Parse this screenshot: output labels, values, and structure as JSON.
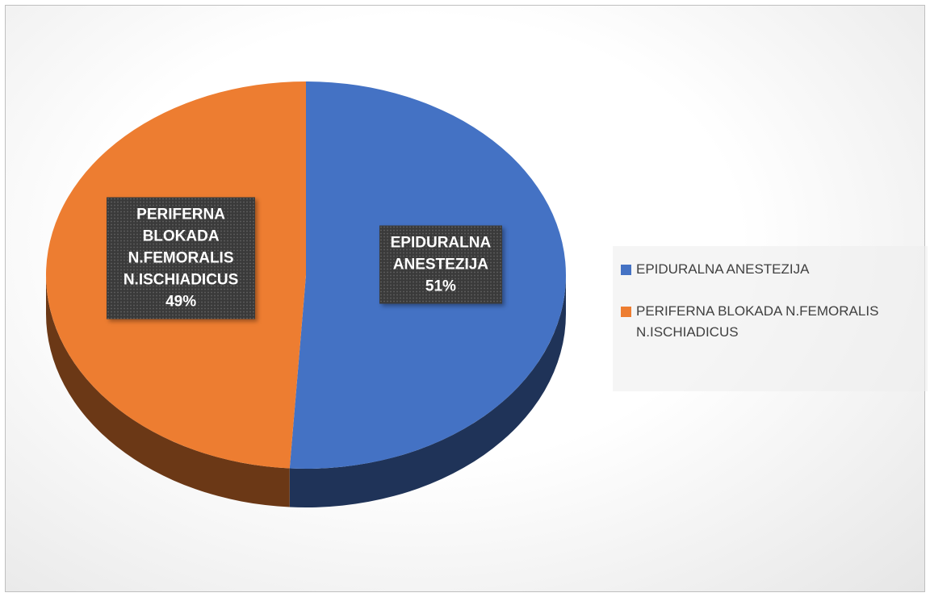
{
  "chart_data": {
    "type": "pie",
    "categories": [
      "EPIDURALNA ANESTEZIJA",
      "PERIFERNA BLOKADA N.FEMORALIS N.ISCHIADICUS"
    ],
    "values": [
      51,
      49
    ],
    "value_labels": [
      "51%",
      "49%"
    ],
    "colors": [
      "#4472c4",
      "#ed7d31"
    ],
    "legend": "right"
  }
}
